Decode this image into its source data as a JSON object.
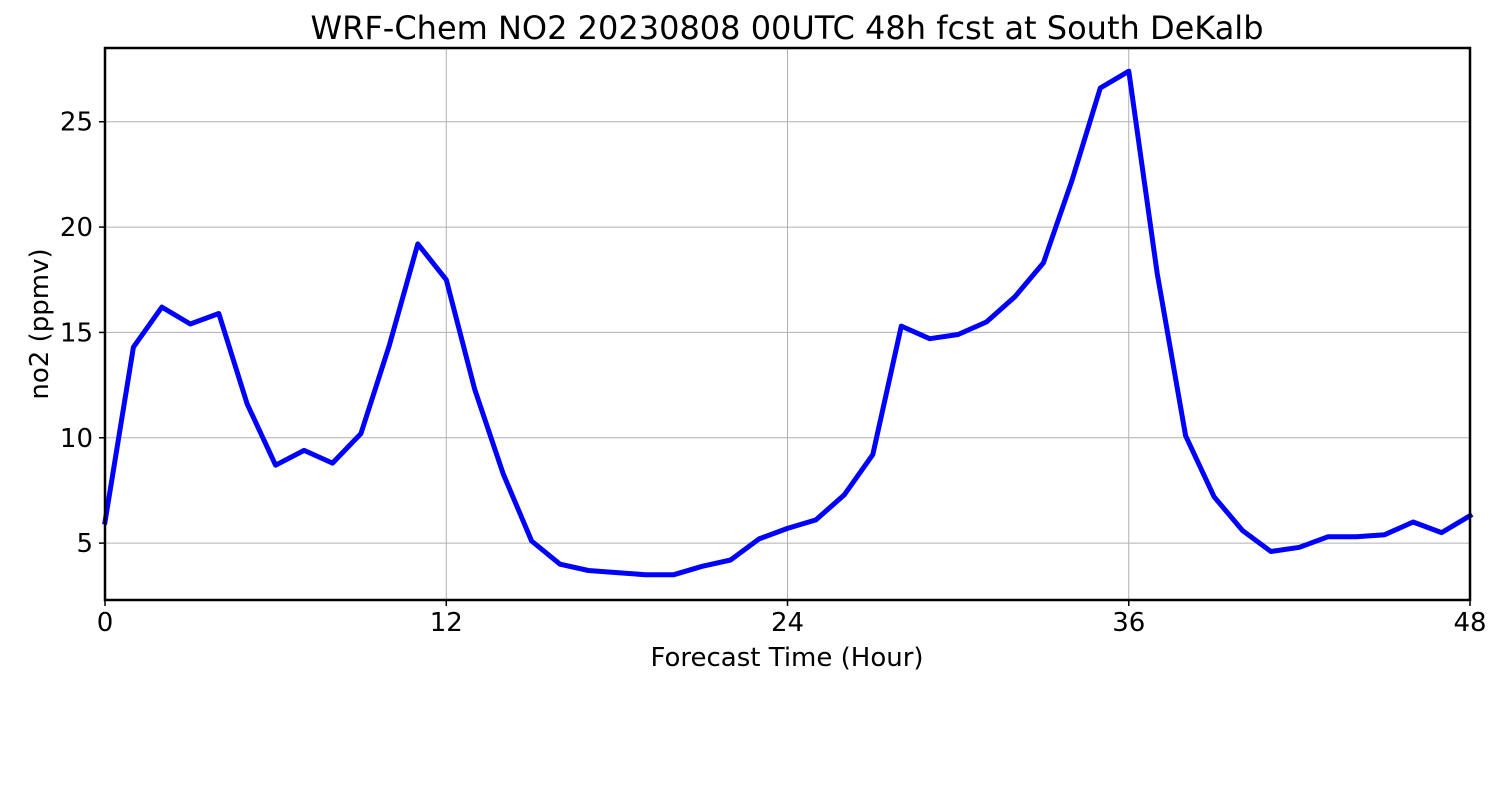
{
  "chart_data": {
    "type": "line",
    "title": "WRF-Chem NO2  20230808 00UTC 48h fcst at South DeKalb",
    "xlabel": "Forecast Time (Hour)",
    "ylabel": "no2  (ppmv)",
    "xlim": [
      0,
      48
    ],
    "ylim": [
      2.3,
      28.5
    ],
    "xticks": [
      0,
      12,
      24,
      36,
      48
    ],
    "yticks": [
      5,
      10,
      15,
      20,
      25
    ],
    "grid": true,
    "series": [
      {
        "color": "#0000ff",
        "x": [
          0,
          1,
          2,
          3,
          4,
          5,
          6,
          7,
          8,
          9,
          10,
          11,
          12,
          13,
          14,
          15,
          16,
          17,
          18,
          19,
          20,
          21,
          22,
          23,
          24,
          25,
          26,
          27,
          28,
          29,
          30,
          31,
          32,
          33,
          34,
          35,
          36,
          37,
          38,
          39,
          40,
          41,
          42,
          43,
          44,
          45,
          46,
          47,
          48
        ],
        "values": [
          6.0,
          14.3,
          16.2,
          15.4,
          15.9,
          11.6,
          8.7,
          9.4,
          8.8,
          10.2,
          14.4,
          19.2,
          17.5,
          12.3,
          8.3,
          5.1,
          4.0,
          3.7,
          3.6,
          3.5,
          3.5,
          3.9,
          4.2,
          5.2,
          5.7,
          6.1,
          7.3,
          9.2,
          15.3,
          14.7,
          14.9,
          15.5,
          16.7,
          18.3,
          22.2,
          26.6,
          27.4,
          17.8,
          10.1,
          7.2,
          5.6,
          4.6,
          4.8,
          5.3,
          5.3,
          5.4,
          6.0,
          5.5,
          6.3
        ]
      }
    ]
  }
}
